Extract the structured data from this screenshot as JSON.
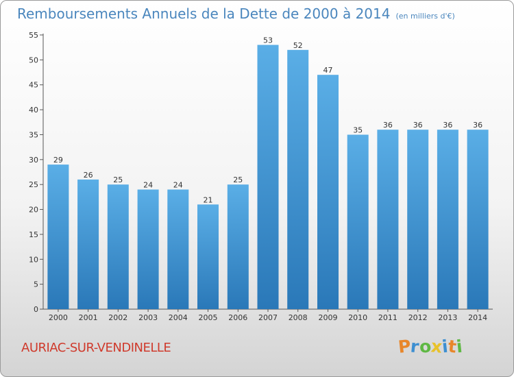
{
  "chart_data": {
    "type": "bar",
    "title": "Remboursements Annuels de la Dette de 2000 à 2014",
    "subtitle": "(en milliers d'€)",
    "categories": [
      "2000",
      "2001",
      "2002",
      "2003",
      "2004",
      "2005",
      "2006",
      "2007",
      "2008",
      "2009",
      "2010",
      "2011",
      "2012",
      "2013",
      "2014"
    ],
    "values": [
      29,
      26,
      25,
      24,
      24,
      21,
      25,
      53,
      52,
      47,
      35,
      36,
      36,
      36,
      36
    ],
    "yticks": [
      0,
      5,
      10,
      15,
      20,
      25,
      30,
      35,
      40,
      45,
      50,
      55
    ],
    "ylim": [
      0,
      55
    ],
    "xlabel": "",
    "ylabel": "",
    "grid": false,
    "bar_color_top": "#5aaee6",
    "bar_color_bottom": "#2a78b8"
  },
  "footer": {
    "commune": "AURIAC-SUR-VENDINELLE",
    "logo_letters": [
      "P",
      "r",
      "o",
      "x",
      "i",
      "t",
      "i"
    ],
    "logo_colors": [
      "#e8862a",
      "#3d8fd1",
      "#5fb844",
      "#e8c22a",
      "#3d8fd1",
      "#e8862a",
      "#5fb844"
    ]
  }
}
